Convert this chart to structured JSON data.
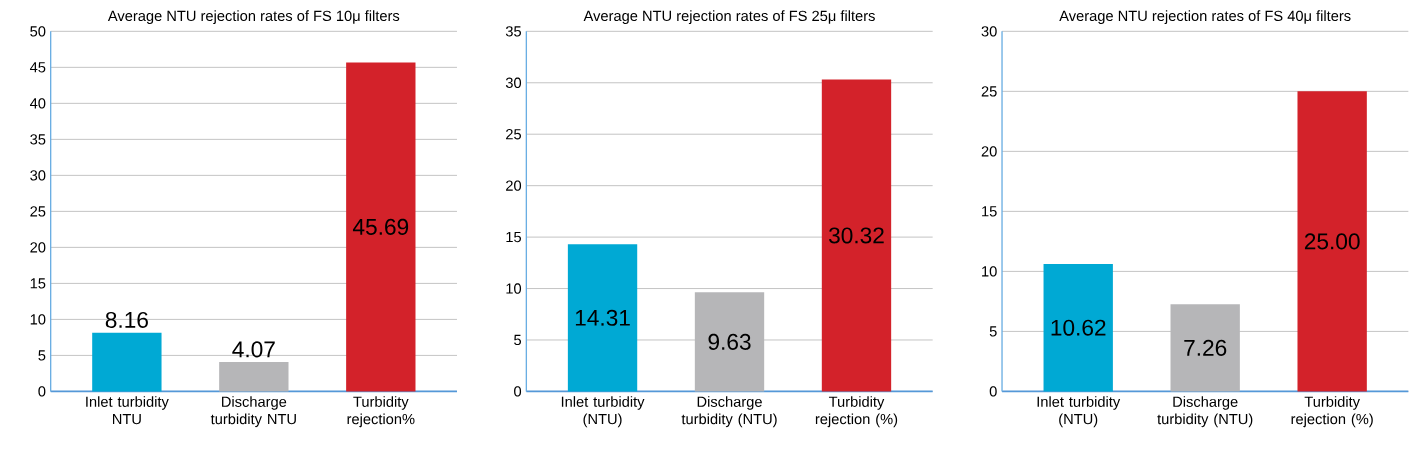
{
  "chart_data": [
    {
      "type": "bar",
      "title": "Average NTU rejection rates of FS 10μ  filters",
      "categories": [
        "Inlet turbidity NTU",
        "Discharge turbidity NTU",
        "Turbidity rejection%"
      ],
      "values": [
        8.16,
        4.07,
        45.69
      ],
      "value_labels": [
        "8.16",
        "4.07",
        "45.69"
      ],
      "colors": [
        "#00a9d4",
        "#b6b6b8",
        "#d3222a"
      ],
      "ylim": [
        0,
        50
      ],
      "yticks": [
        0,
        5,
        10,
        15,
        20,
        25,
        30,
        35,
        40,
        45,
        50
      ],
      "grid": "y"
    },
    {
      "type": "bar",
      "title": "Average NTU rejection rates of FS 25μ  filters",
      "categories": [
        "Inlet turbidity (NTU)",
        "Discharge turbidity (NTU)",
        "Turbidity rejection (%)"
      ],
      "values": [
        14.31,
        9.63,
        30.32
      ],
      "value_labels": [
        "14.31",
        "9.63",
        "30.32"
      ],
      "colors": [
        "#00a9d4",
        "#b6b6b8",
        "#d3222a"
      ],
      "ylim": [
        0,
        35
      ],
      "yticks": [
        0,
        5,
        10,
        15,
        20,
        25,
        30,
        35
      ],
      "grid": "y"
    },
    {
      "type": "bar",
      "title": "Average NTU rejection rates of FS 40μ filters",
      "categories": [
        "Inlet turbidity (NTU)",
        "Discharge turbidity (NTU)",
        "Turbidity rejection (%)"
      ],
      "values": [
        10.62,
        7.26,
        25.0
      ],
      "value_labels": [
        "10.62",
        "7.26",
        "25.00"
      ],
      "colors": [
        "#00a9d4",
        "#b6b6b8",
        "#d3222a"
      ],
      "ylim": [
        0,
        30
      ],
      "yticks": [
        0,
        5,
        10,
        15,
        20,
        25,
        30
      ],
      "grid": "y"
    }
  ]
}
